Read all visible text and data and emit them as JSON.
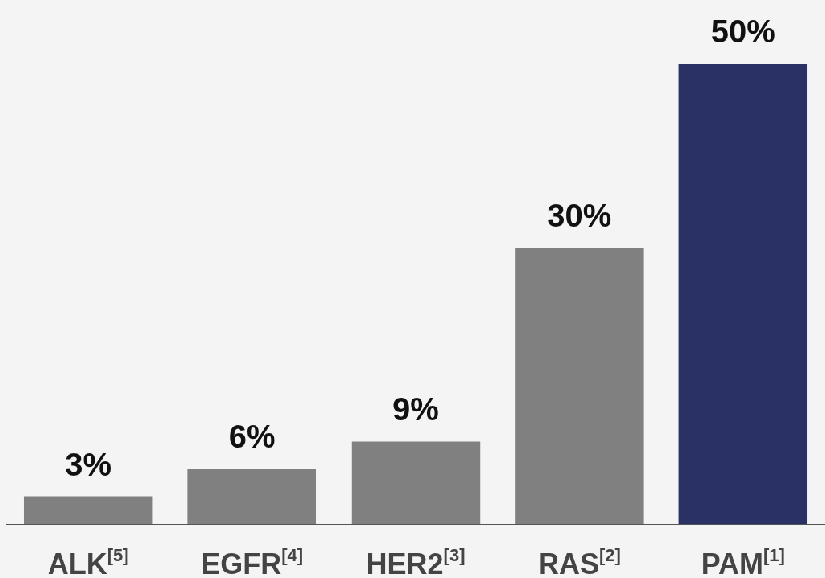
{
  "chart_data": {
    "type": "bar",
    "categories": [
      "ALK$^{[5]}$",
      "EGFR$^{[4]}$",
      "HER2$^{[3]}$",
      "RAS$^{[2]}$",
      "PAM$^{[1]}$"
    ],
    "values": [
      3,
      6,
      9,
      30,
      50
    ],
    "colors": [
      "#808080",
      "#808080",
      "#808080",
      "#808080",
      "#2a3164"
    ],
    "value_labels": [
      "3%",
      "6%",
      "9%",
      "30%",
      "50%"
    ],
    "grid": false,
    "legend": false
  }
}
